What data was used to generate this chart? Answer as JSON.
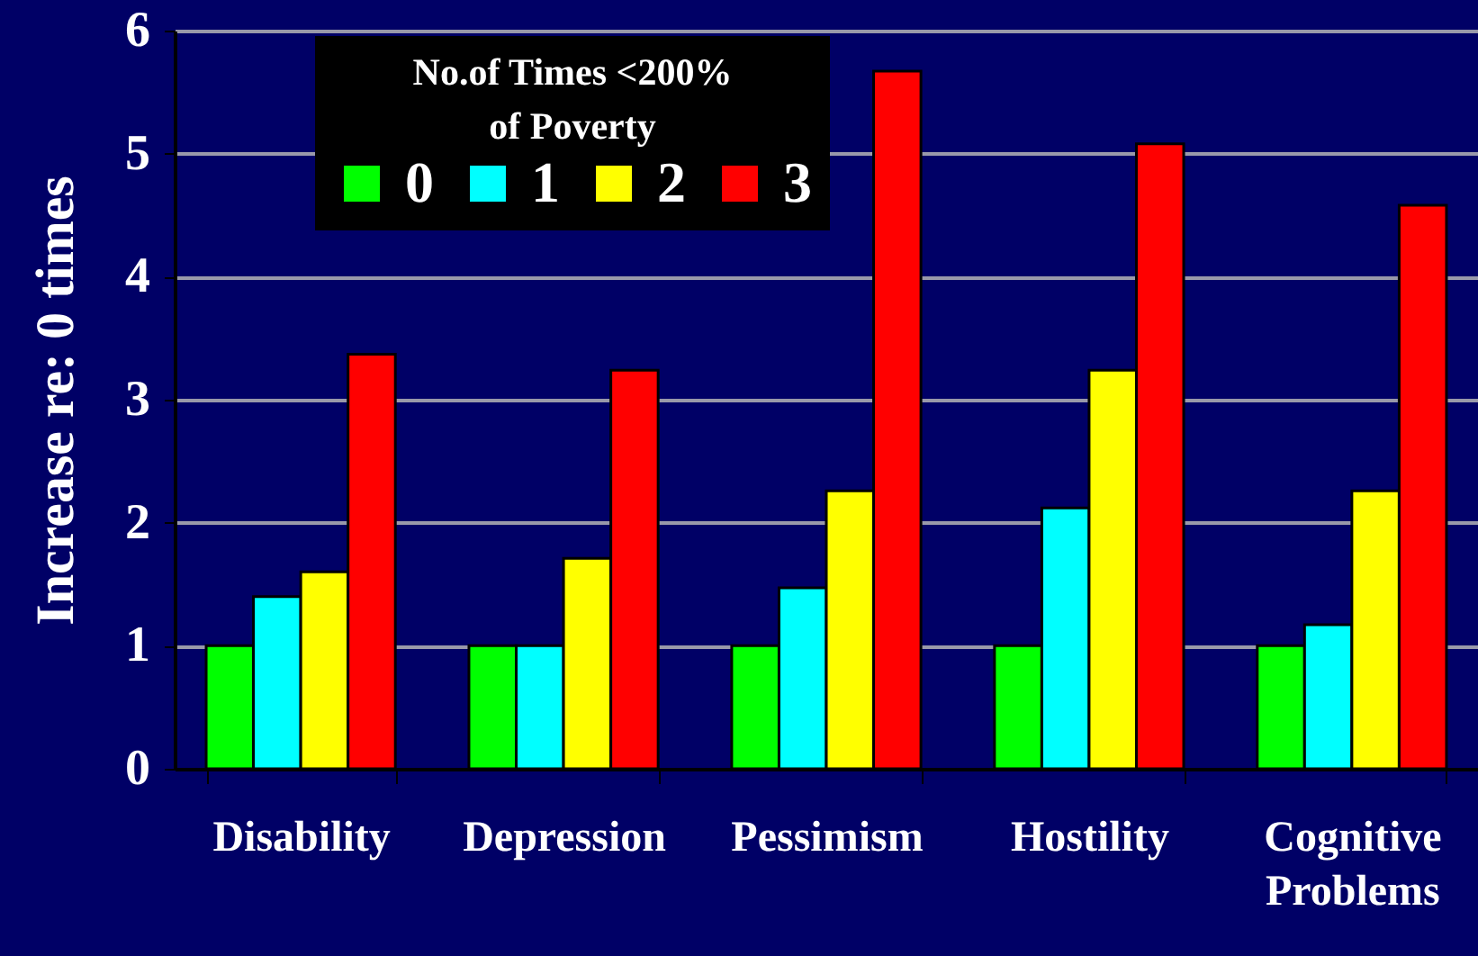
{
  "chart_data": {
    "type": "bar",
    "ylabel": "Increase re: 0 times",
    "legend_title": "No.of Times <200% of Poverty",
    "categories": [
      "Disability",
      "Depression",
      "Pessimism",
      "Hostility",
      "Cognitive Problems"
    ],
    "series": [
      {
        "name": "0",
        "color": "#00ff00",
        "values": [
          1,
          1,
          1,
          1,
          1
        ]
      },
      {
        "name": "1",
        "color": "#00ffff",
        "values": [
          1.4,
          1,
          1.47,
          2.12,
          1.17
        ]
      },
      {
        "name": "2",
        "color": "#ffff00",
        "values": [
          1.6,
          1.71,
          2.26,
          3.24,
          2.26
        ]
      },
      {
        "name": "3",
        "color": "#ff0000",
        "values": [
          3.37,
          3.24,
          5.67,
          5.08,
          4.58
        ]
      }
    ],
    "ylim": [
      0,
      6
    ],
    "yticks": [
      0,
      1,
      2,
      3,
      4,
      5,
      6
    ],
    "grid": "y",
    "legend": "top left"
  }
}
